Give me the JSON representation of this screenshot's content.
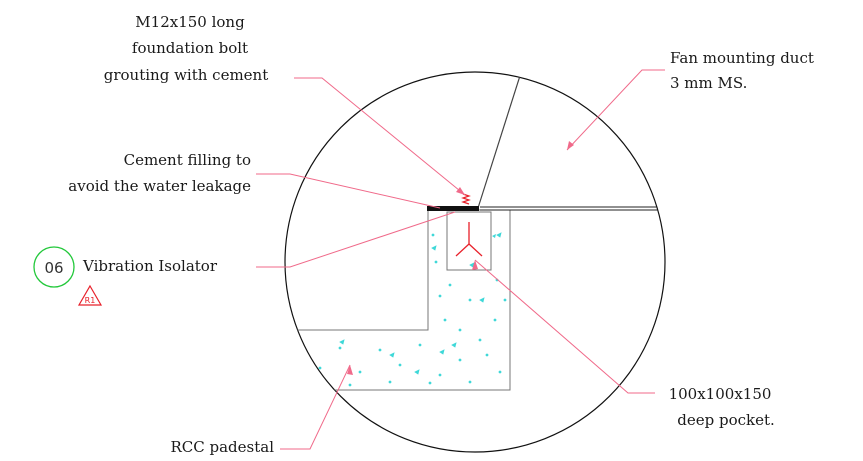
{
  "labels": {
    "foundation_bolt": [
      "M12x150 long",
      "foundation bolt",
      "grouting with cement"
    ],
    "fan_duct": [
      "Fan mounting duct",
      "3 mm MS."
    ],
    "cement_filling": [
      "Cement filling to",
      "avoid the water leakage"
    ],
    "vibration_isolator": "Vibration Isolator",
    "pocket": [
      "100x100x150",
      "deep pocket."
    ],
    "padestal": "RCC padestal"
  },
  "tags": {
    "detail_number": "06",
    "revision": "R1"
  },
  "colors": {
    "leader": "#f06a8a",
    "outline": "#555555",
    "concrete_hatch": "#3fd8d8",
    "detail_circle": "#22c83a",
    "revision": "#e8202a",
    "isolator": "#e8202a"
  }
}
